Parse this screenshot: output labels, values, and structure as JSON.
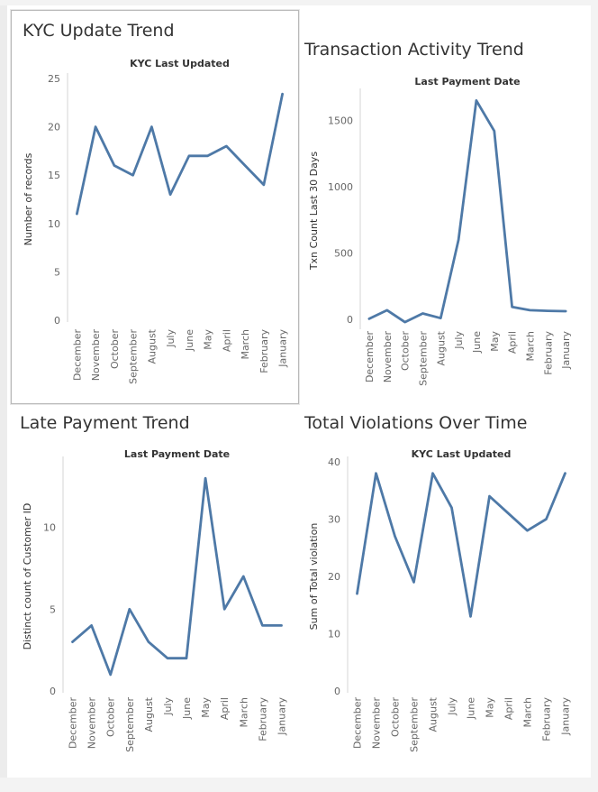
{
  "colors": {
    "line": "#4e79a7",
    "text": "#333333",
    "tick": "#666666",
    "axis": "#d4d4d4"
  },
  "chart_data": [
    {
      "id": "kyc",
      "type": "line",
      "title": "KYC Update Trend",
      "subtitle": "KYC Last Updated",
      "ylabel": "Number of records",
      "xlabel": "",
      "categories": [
        "December",
        "November",
        "October",
        "September",
        "August",
        "July",
        "June",
        "May",
        "April",
        "March",
        "February",
        "January"
      ],
      "values": [
        11,
        20,
        16,
        15,
        20,
        13,
        17,
        17,
        18,
        16,
        14,
        23.4
      ],
      "ylim": [
        0,
        25
      ],
      "yticks": [
        0,
        5,
        10,
        15,
        20,
        25
      ],
      "grid": false
    },
    {
      "id": "txn",
      "type": "line",
      "title": "Transaction Activity Trend",
      "subtitle": "Last Payment Date",
      "ylabel": "Txn Count Last 30 Days",
      "xlabel": "",
      "categories": [
        "December",
        "November",
        "October",
        "September",
        "August",
        "July",
        "June",
        "May",
        "April",
        "March",
        "February",
        "January"
      ],
      "values": [
        5,
        70,
        -20,
        45,
        10,
        600,
        1650,
        1420,
        95,
        70,
        65,
        62
      ],
      "ylim": [
        -60,
        1700
      ],
      "yticks": [
        0,
        500,
        1000,
        1500
      ],
      "grid": false
    },
    {
      "id": "late",
      "type": "line",
      "title": "Late Payment Trend",
      "subtitle": "Last Payment Date",
      "ylabel": "Distinct count of Customer ID",
      "xlabel": "",
      "categories": [
        "December",
        "November",
        "October",
        "September",
        "August",
        "July",
        "June",
        "May",
        "April",
        "March",
        "February",
        "January"
      ],
      "values": [
        3,
        4,
        1,
        5,
        3,
        2,
        2,
        13,
        5,
        7,
        4,
        4
      ],
      "ylim": [
        0,
        14
      ],
      "yticks": [
        0,
        5,
        10
      ],
      "grid": false
    },
    {
      "id": "viol",
      "type": "line",
      "title": "Total Violations Over Time",
      "subtitle": "KYC Last Updated",
      "ylabel": "Sum of Total violation",
      "xlabel": "",
      "categories": [
        "December",
        "November",
        "October",
        "September",
        "August",
        "July",
        "June",
        "May",
        "April",
        "March",
        "February",
        "January"
      ],
      "values": [
        17,
        38,
        27,
        19,
        38,
        32,
        13,
        34,
        31,
        28,
        30,
        38
      ],
      "ylim": [
        0,
        40
      ],
      "yticks": [
        0,
        10,
        20,
        30,
        40
      ],
      "grid": false
    }
  ]
}
